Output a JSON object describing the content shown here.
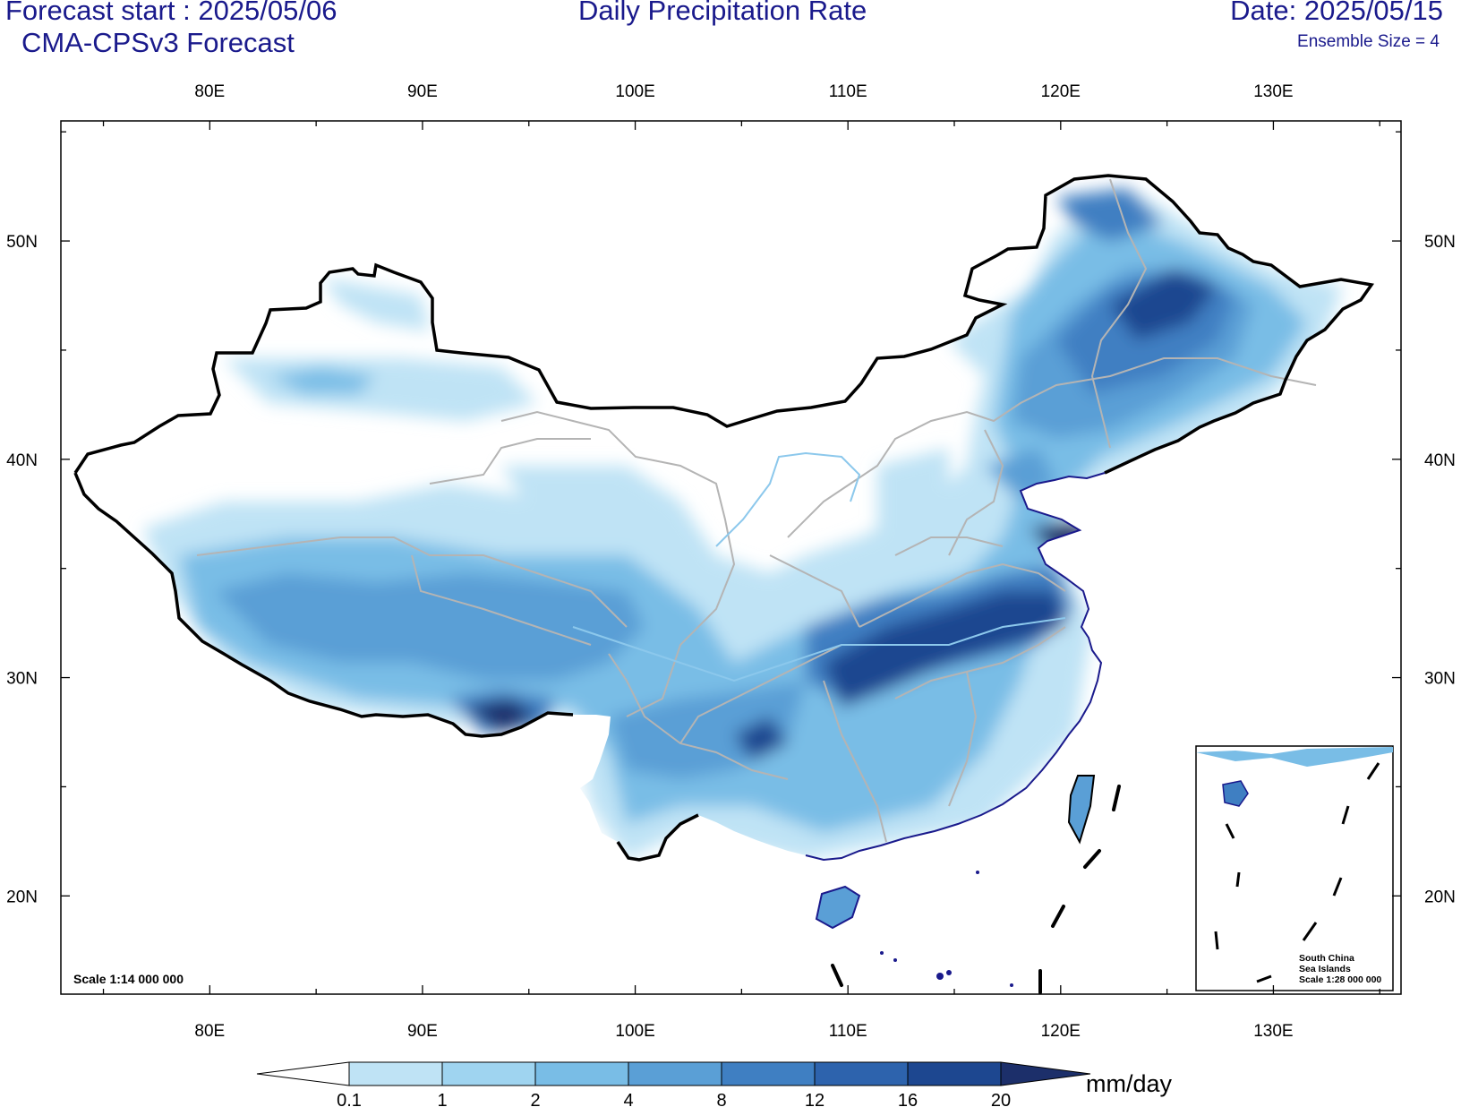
{
  "header": {
    "forecast_start": "Forecast start : 2025/05/06",
    "model": "CMA-CPSv3 Forecast",
    "title": "Daily Precipitation Rate",
    "date": "Date: 2025/05/15",
    "ensemble": "Ensemble Size = 4"
  },
  "axes": {
    "lon_labels": [
      "80E",
      "90E",
      "100E",
      "110E",
      "120E",
      "130E"
    ],
    "lat_labels": [
      "50N",
      "40N",
      "30N",
      "20N"
    ],
    "lon_ticks": [
      80,
      90,
      100,
      110,
      120,
      130
    ],
    "lat_ticks": [
      50,
      40,
      30,
      20
    ],
    "lon_range": [
      73,
      136
    ],
    "lat_range": [
      15.5,
      55.5
    ]
  },
  "map": {
    "scale": "Scale 1:14 000 000",
    "inset_title_1": "South China",
    "inset_title_2": "Sea Islands",
    "inset_scale": "Scale 1:28 000 000"
  },
  "colorbar": {
    "levels": [
      "0.1",
      "1",
      "2",
      "4",
      "8",
      "12",
      "16",
      "20"
    ],
    "colors": [
      "#bfe3f5",
      "#9fd4f0",
      "#79bde6",
      "#5a9fd6",
      "#3f7fc2",
      "#2d63ad",
      "#1d4790",
      "#1c2f6a"
    ],
    "low_color": "#ffffff",
    "unit": "mm/day"
  },
  "chart_data": {
    "type": "heatmap",
    "title": "Daily Precipitation Rate",
    "unit": "mm/day",
    "contour_levels": [
      0.1,
      1,
      2,
      4,
      8,
      12,
      16,
      20
    ],
    "x_range_lon": [
      73,
      136
    ],
    "y_range_lat": [
      15.5,
      55.5
    ]
  }
}
